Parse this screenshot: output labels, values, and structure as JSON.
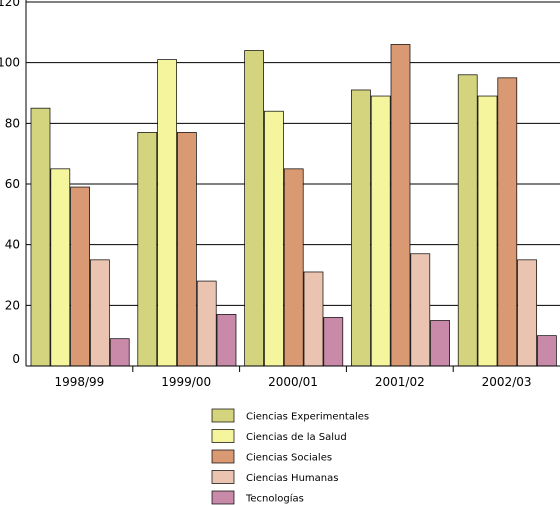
{
  "chart_data": {
    "type": "bar",
    "categories": [
      "1998/99",
      "1999/00",
      "2000/01",
      "2001/02",
      "2002/03"
    ],
    "series": [
      {
        "name": "Ciencias Experimentales",
        "color": "#d4d47f",
        "values": [
          85,
          77,
          104,
          91,
          96
        ]
      },
      {
        "name": "Ciencias de la Salud",
        "color": "#f5f59d",
        "values": [
          65,
          101,
          84,
          89,
          89
        ]
      },
      {
        "name": "Ciencias Sociales",
        "color": "#d99a73",
        "values": [
          59,
          77,
          65,
          106,
          95
        ]
      },
      {
        "name": "Ciencias Humanas",
        "color": "#ebc4b1",
        "values": [
          35,
          28,
          31,
          37,
          35
        ]
      },
      {
        "name": "Tecnologías",
        "color": "#c98aa9",
        "values": [
          9,
          17,
          16,
          15,
          10
        ]
      }
    ],
    "yticks": [
      0,
      20,
      40,
      60,
      80,
      100,
      120
    ],
    "ylim": [
      0,
      120
    ],
    "grid": true,
    "legend_position": "bottom"
  }
}
